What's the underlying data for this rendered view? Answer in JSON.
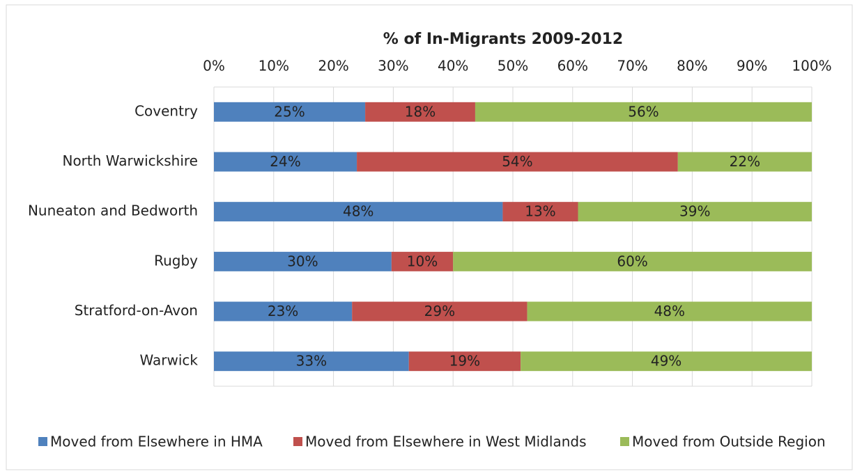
{
  "chart_data": {
    "type": "stacked-bar-horizontal",
    "title": "% of In-Migrants 2009-2012",
    "categories": [
      "Coventry",
      "North Warwickshire",
      "Nuneaton and Bedworth",
      "Rugby",
      "Stratford-on-Avon",
      "Warwick"
    ],
    "series": [
      {
        "name": "Moved from Elsewhere in HMA",
        "color": "#4f81bd",
        "values": [
          25.3,
          23.9,
          48.3,
          29.7,
          23.1,
          32.6
        ],
        "value_labels": [
          "25%",
          "24%",
          "48%",
          "30%",
          "23%",
          "33%"
        ]
      },
      {
        "name": "Moved from Elsewhere in West Midlands",
        "color": "#c0504d",
        "values": [
          18.4,
          53.7,
          12.6,
          10.3,
          29.3,
          18.7
        ],
        "value_labels": [
          "18%",
          "54%",
          "13%",
          "10%",
          "29%",
          "19%"
        ]
      },
      {
        "name": "Moved from Outside Region",
        "color": "#9bbb59",
        "values": [
          56.3,
          22.4,
          39.1,
          60.0,
          47.6,
          48.7
        ],
        "value_labels": [
          "56%",
          "22%",
          "39%",
          "60%",
          "48%",
          "49%"
        ]
      }
    ],
    "xlim": [
      0,
      100
    ],
    "xticks": [
      {
        "value": 0,
        "label": "0%"
      },
      {
        "value": 10,
        "label": "10%"
      },
      {
        "value": 20,
        "label": "20%"
      },
      {
        "value": 30,
        "label": "30%"
      },
      {
        "value": 40,
        "label": "40%"
      },
      {
        "value": 50,
        "label": "50%"
      },
      {
        "value": 60,
        "label": "60%"
      },
      {
        "value": 70,
        "label": "70%"
      },
      {
        "value": 80,
        "label": "80%"
      },
      {
        "value": 90,
        "label": "90%"
      },
      {
        "value": 100,
        "label": "100%"
      }
    ],
    "grid": true,
    "legend": "bottom"
  }
}
